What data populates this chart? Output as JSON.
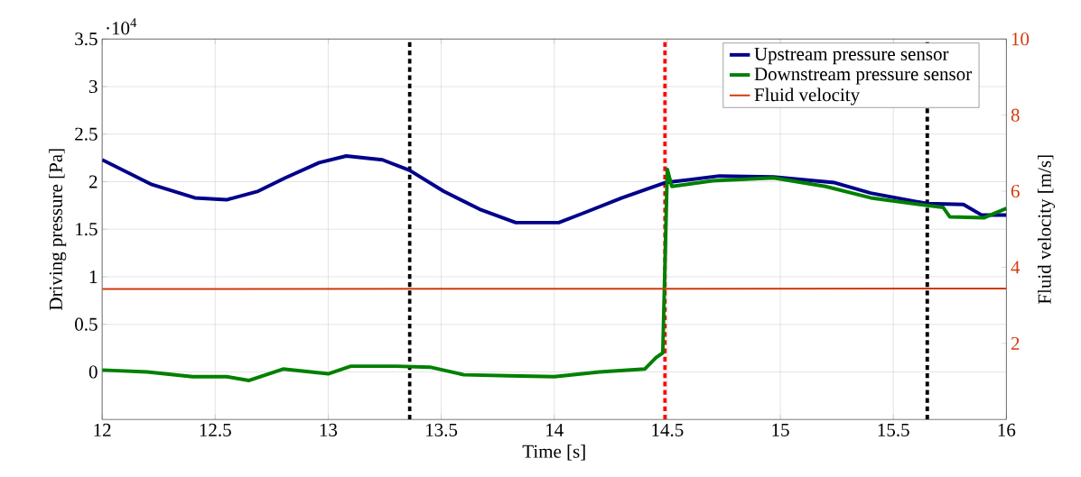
{
  "chart_data": {
    "type": "line",
    "xlabel": "Time [s]",
    "ylabel": "Driving pressure [Pa]",
    "y2label": "Fluid velocity [m/s]",
    "annotations": [
      "·10$^{4}$"
    ],
    "xlim": [
      12,
      16
    ],
    "xticks": [
      12,
      12.5,
      13,
      13.5,
      14,
      14.5,
      15,
      15.5,
      16
    ],
    "ylim": [
      -0.5,
      3.5
    ],
    "yticks": [
      0,
      0.5,
      1,
      1.5,
      2,
      2.5,
      3,
      3.5
    ],
    "y2lim": [
      0,
      10
    ],
    "y2ticks": [
      2,
      4,
      6,
      8,
      10
    ],
    "grid": true,
    "legend": "top right",
    "marker": "none",
    "line_style": "solid",
    "ref_lines": [
      {
        "axis": "x",
        "value": 13.36,
        "label": null,
        "color": "#000000",
        "line_style": "dotted"
      },
      {
        "axis": "x",
        "value": 14.49,
        "label": null,
        "color": "#ff0000",
        "line_style": "dotted"
      },
      {
        "axis": "x",
        "value": 15.65,
        "label": null,
        "color": "#000000",
        "line_style": "dotted"
      }
    ],
    "series": [
      {
        "name": "Upstream pressure sensor",
        "color": "#00008b",
        "x": [
          12,
          12.22,
          12.41,
          12.55,
          12.69,
          12.81,
          12.96,
          13.08,
          13.24,
          13.36,
          13.51,
          13.67,
          13.83,
          14.02,
          14.14,
          14.3,
          14.49,
          14.73,
          14.97,
          15.24,
          15.4,
          15.65,
          15.81,
          15.89,
          16
        ],
        "values": [
          2.23,
          1.97,
          1.83,
          1.81,
          1.9,
          2.04,
          2.2,
          2.27,
          2.23,
          2.12,
          1.9,
          1.71,
          1.57,
          1.57,
          1.68,
          1.83,
          1.99,
          2.06,
          2.05,
          1.99,
          1.88,
          1.77,
          1.76,
          1.65,
          1.65
        ]
      },
      {
        "name": "Downstream pressure sensor",
        "color": "#008000",
        "x": [
          12,
          12.2,
          12.4,
          12.55,
          12.65,
          12.8,
          13.0,
          13.1,
          13.3,
          13.45,
          13.6,
          13.8,
          14.0,
          14.2,
          14.4,
          14.45,
          14.48,
          14.5,
          14.52,
          14.7,
          14.97,
          15.2,
          15.4,
          15.65,
          15.72,
          15.75,
          15.9,
          16
        ],
        "values": [
          0.02,
          0.0,
          -0.05,
          -0.05,
          -0.09,
          0.03,
          -0.02,
          0.06,
          0.06,
          0.05,
          -0.03,
          -0.04,
          -0.05,
          0.0,
          0.03,
          0.15,
          0.2,
          2.13,
          1.95,
          2.01,
          2.04,
          1.95,
          1.83,
          1.75,
          1.73,
          1.63,
          1.62,
          1.72
        ]
      },
      {
        "name": "Fluid velocity",
        "color": "#d13a0a",
        "axis": "y2",
        "x": [
          12,
          16
        ],
        "values": [
          3.43,
          3.44
        ]
      }
    ]
  }
}
